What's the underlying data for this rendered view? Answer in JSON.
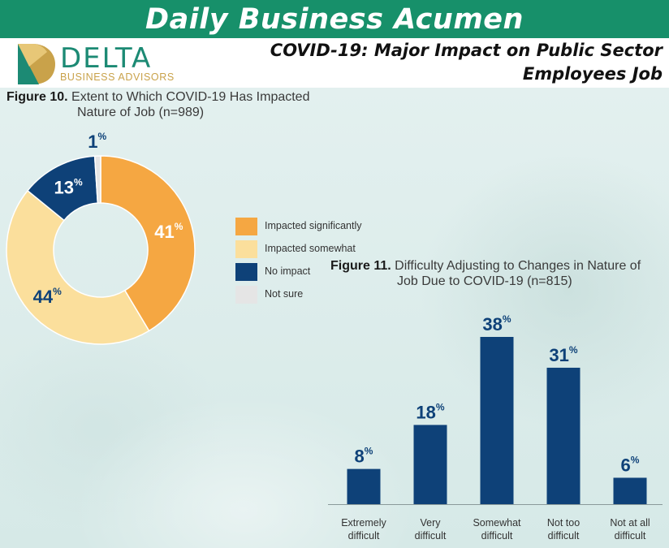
{
  "banner": {
    "title": "Daily Business Acumen"
  },
  "logo": {
    "name": "DELTA",
    "tagline": "BUSINESS ADVISORS"
  },
  "headline": {
    "line1": "COVID-19:  Major Impact on Public Sector",
    "line2": "Employees Job"
  },
  "colors": {
    "banner": "#17906a",
    "impacted_significantly": "#f5a742",
    "impacted_somewhat": "#fbdf9c",
    "no_impact": "#0e4178",
    "not_sure": "#e5e5e5",
    "bar": "#0e4178"
  },
  "chart_data": [
    {
      "type": "pie",
      "variant": "donut",
      "figure_label": "Figure 10.",
      "title_line1": "Extent to Which COVID-19 Has Impacted",
      "title_line2": "Nature of Job (n=989)",
      "unit": "%",
      "slices": [
        {
          "label": "Impacted significantly",
          "value": 41,
          "color": "#f5a742",
          "text_color": "#ffffff"
        },
        {
          "label": "Impacted somewhat",
          "value": 44,
          "color": "#fbdf9c",
          "text_color": "#0e4178"
        },
        {
          "label": "No impact",
          "value": 13,
          "color": "#0e4178",
          "text_color": "#ffffff"
        },
        {
          "label": "Not sure",
          "value": 1,
          "color": "#e5e5e5",
          "text_color": "#0e4178"
        }
      ],
      "legend_position": "right"
    },
    {
      "type": "bar",
      "figure_label": "Figure 11.",
      "title_line1": "Difficulty Adjusting to Changes in Nature of",
      "title_line2": "Job Due to COVID-19 (n=815)",
      "unit": "%",
      "categories": [
        [
          "Extremely",
          "difficult"
        ],
        [
          "Very",
          "difficult"
        ],
        [
          "Somewhat",
          "difficult"
        ],
        [
          "Not too",
          "difficult"
        ],
        [
          "Not at all",
          "difficult"
        ]
      ],
      "values": [
        8,
        18,
        38,
        31,
        6
      ],
      "ylim": [
        0,
        40
      ],
      "grid": false
    }
  ]
}
